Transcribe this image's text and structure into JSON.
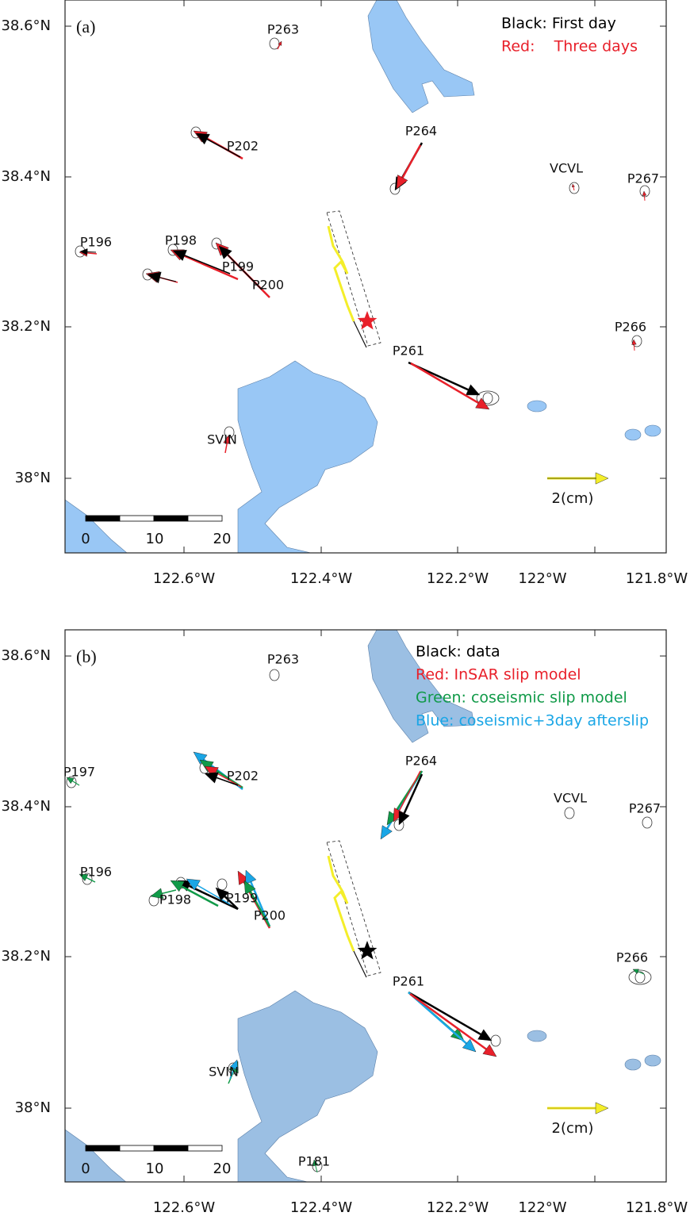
{
  "panels": [
    {
      "label": "(a)",
      "legend": [
        {
          "text": "Black: First day",
          "color": "#000000"
        },
        {
          "text": "Red:    Three days",
          "color": "#e8202a"
        }
      ],
      "stations": [
        "P263",
        "P202",
        "P264",
        "VCVL",
        "P267",
        "P196",
        "P198",
        "P199",
        "P200",
        "P266",
        "P261",
        "SVIN"
      ],
      "lat_ticks": [
        "38.6°N",
        "38.4°N",
        "38.2°N",
        "38°N"
      ],
      "lon_ticks": [
        "122.6°W",
        "122.4°W",
        "122.2°W",
        "122°W",
        "121.8°W"
      ],
      "scale_vector": "2(cm)",
      "scale_bar": [
        "0",
        "10",
        "20"
      ]
    },
    {
      "label": "(b)",
      "legend": [
        {
          "text": "Black: data",
          "color": "#000000"
        },
        {
          "text": "Red: InSAR slip model",
          "color": "#e8202a"
        },
        {
          "text": "Green: coseismic slip model",
          "color": "#109a48"
        },
        {
          "text": "Blue: coseismic+3day afterslip",
          "color": "#1aa6e6"
        }
      ],
      "stations": [
        "P263",
        "P197",
        "P202",
        "P264",
        "VCVL",
        "P267",
        "P196",
        "P198",
        "P199",
        "P200",
        "P266",
        "P261",
        "SVIN",
        "P181"
      ],
      "lat_ticks": [
        "38.6°N",
        "38.4°N",
        "38.2°N",
        "38°N"
      ],
      "lon_ticks": [
        "122.6°W",
        "122.4°W",
        "122.2°W",
        "122°W",
        "121.8°W"
      ],
      "scale_vector": "2(cm)",
      "scale_bar": [
        "0",
        "10",
        "20"
      ]
    }
  ]
}
